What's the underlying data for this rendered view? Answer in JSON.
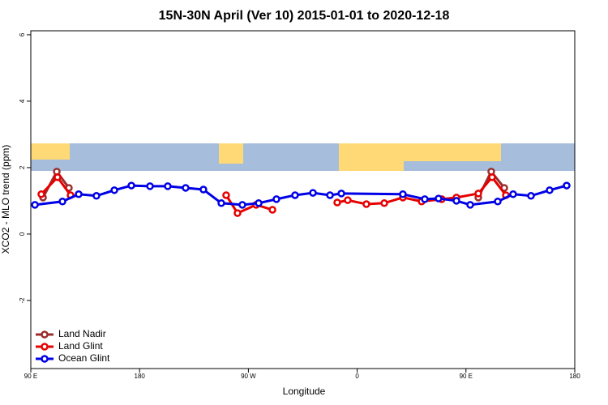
{
  "chart_data": {
    "type": "line",
    "title": "15N-30N April (Ver 10)   2015-01-01 to 2020-12-18",
    "x_label": "Longitude",
    "y_label": "XCO2 - MLO trend (ppm)",
    "xlim": [
      90,
      540
    ],
    "xticks": [
      {
        "value": 90,
        "label": "90 E"
      },
      180,
      {
        "value": 270,
        "label": "90 W"
      },
      {
        "value": 360,
        "label": "0"
      },
      {
        "value": 450,
        "label": "90 E"
      },
      {
        "value": 540,
        "label": "180"
      }
    ],
    "ylim": [
      -4.05,
      6.12
    ],
    "yticks": [
      -2,
      0,
      2,
      4,
      6
    ],
    "legend": "bottom-left",
    "series": [
      {
        "name": "Land Nadir",
        "color": "#9b2d2d",
        "x": [
          100.1,
          111.5,
          121.5,
          null,
          460.2,
          470.9,
          481.7
        ],
        "values": [
          1.1,
          1.88,
          1.39,
          null,
          1.1,
          1.88,
          1.39
        ]
      },
      {
        "name": "Land Glint",
        "color": "#e60000",
        "x": [
          98.7,
          112.1,
          122.9,
          null,
          251.6,
          261.0,
          276.4,
          289.9,
          null,
          343.5,
          352.2,
          367.6,
          382.4,
          397.8,
          413.3,
          430.0,
          442.1,
          460.2,
          471.6,
          483.0
        ],
        "values": [
          1.2,
          1.71,
          1.17,
          null,
          1.17,
          0.63,
          0.88,
          0.73,
          null,
          0.95,
          1.02,
          0.9,
          0.93,
          1.1,
          0.98,
          1.05,
          1.1,
          1.22,
          1.71,
          1.17
        ]
      },
      {
        "name": "Ocean Glint",
        "color": "#0000e6",
        "x": [
          93.4,
          116.2,
          129.6,
          144.3,
          159.1,
          173.2,
          188.6,
          203.3,
          218.1,
          232.8,
          247.6,
          265.0,
          278.5,
          293.2,
          308.6,
          323.4,
          337.5,
          346.9,
          397.8,
          415.9,
          427.3,
          442.1,
          453.5,
          476.3,
          489.0,
          503.8,
          519.2,
          533.3
        ],
        "values": [
          0.88,
          0.98,
          1.2,
          1.15,
          1.32,
          1.46,
          1.44,
          1.44,
          1.39,
          1.34,
          0.93,
          0.88,
          0.93,
          1.05,
          1.17,
          1.24,
          1.17,
          1.22,
          1.2,
          1.05,
          1.07,
          1.0,
          0.88,
          0.98,
          1.2,
          1.15,
          1.32,
          1.46
        ]
      }
    ]
  }
}
